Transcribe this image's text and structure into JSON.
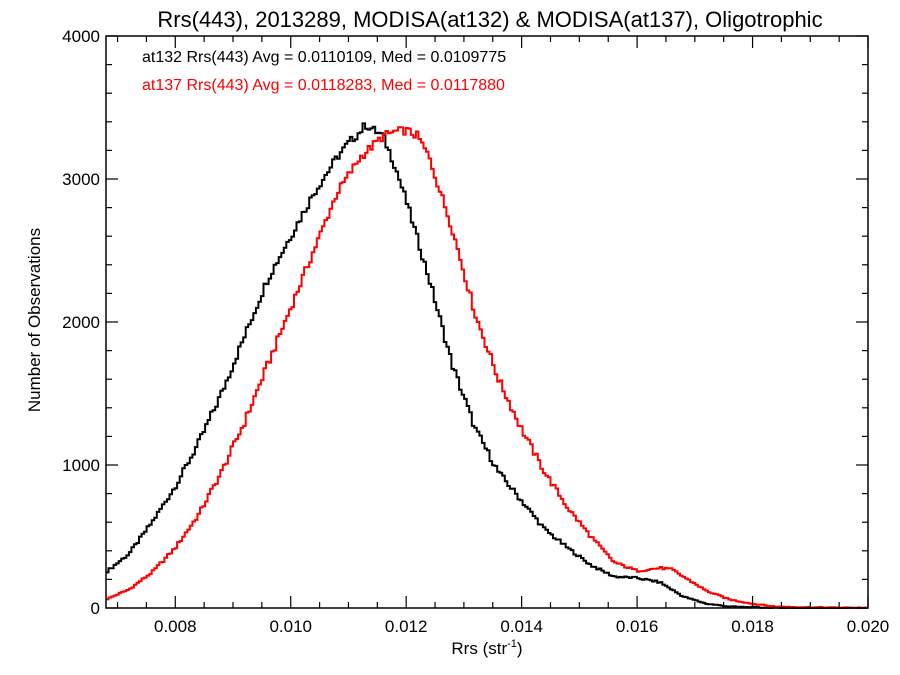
{
  "chart_data": {
    "type": "line",
    "title": "Rrs(443), 2013289, MODISA(at132) & MODISA(at137), Oligotrophic",
    "xlabel_main": "Rrs (str",
    "xlabel_sup": "-1",
    "xlabel_close": ")",
    "ylabel": "Number of Observations",
    "xlim": [
      0.0068,
      0.02
    ],
    "ylim": [
      0,
      4000
    ],
    "xticks": [
      0.008,
      0.01,
      0.012,
      0.014,
      0.016,
      0.018,
      0.02
    ],
    "xtick_labels": [
      "0.008",
      "0.010",
      "0.012",
      "0.014",
      "0.016",
      "0.018",
      "0.020"
    ],
    "yticks": [
      0,
      1000,
      2000,
      3000,
      4000
    ],
    "ytick_labels": [
      "0",
      "1000",
      "2000",
      "3000",
      "4000"
    ],
    "grid": false,
    "annotations": [
      {
        "text": "at132 Rrs(443) Avg = 0.0110109, Med = 0.0109775",
        "color": "#000000"
      },
      {
        "text": "at137 Rrs(443) Avg = 0.0118283, Med = 0.0117880",
        "color": "#ff0000"
      }
    ],
    "series": [
      {
        "color": "#000000",
        "x": [
          0.0068,
          0.0072,
          0.0076,
          0.008,
          0.0084,
          0.0088,
          0.0092,
          0.0096,
          0.01,
          0.0104,
          0.0108,
          0.011,
          0.0112,
          0.0113,
          0.0116,
          0.0118,
          0.012,
          0.0124,
          0.0128,
          0.0132,
          0.0136,
          0.014,
          0.0144,
          0.0148,
          0.0152,
          0.0156,
          0.016,
          0.0164,
          0.0168,
          0.0172,
          0.0176,
          0.018,
          0.0184,
          0.019,
          0.02
        ],
        "y": [
          250,
          380,
          600,
          850,
          1150,
          1500,
          1900,
          2300,
          2600,
          2900,
          3150,
          3250,
          3330,
          3380,
          3300,
          3100,
          2850,
          2300,
          1700,
          1250,
          950,
          750,
          550,
          420,
          300,
          220,
          210,
          180,
          80,
          30,
          10,
          5,
          0,
          0,
          0
        ]
      },
      {
        "color": "#ff0000",
        "x": [
          0.0068,
          0.0072,
          0.0076,
          0.008,
          0.0084,
          0.0088,
          0.0092,
          0.0096,
          0.01,
          0.0104,
          0.0108,
          0.0112,
          0.0116,
          0.0118,
          0.012,
          0.0122,
          0.0124,
          0.0128,
          0.0132,
          0.0136,
          0.014,
          0.0144,
          0.0148,
          0.0152,
          0.0156,
          0.016,
          0.0164,
          0.0166,
          0.0168,
          0.0172,
          0.0176,
          0.018,
          0.0184,
          0.019,
          0.02
        ],
        "y": [
          60,
          130,
          250,
          420,
          650,
          950,
          1300,
          1700,
          2100,
          2500,
          2900,
          3150,
          3300,
          3330,
          3340,
          3300,
          3150,
          2650,
          2050,
          1600,
          1250,
          950,
          700,
          500,
          320,
          260,
          280,
          270,
          220,
          120,
          60,
          30,
          10,
          5,
          0
        ]
      }
    ]
  }
}
